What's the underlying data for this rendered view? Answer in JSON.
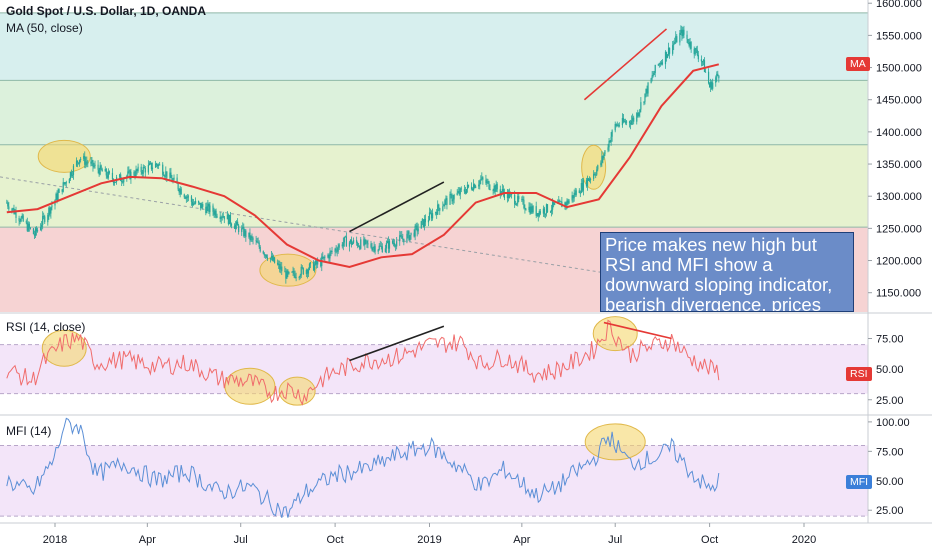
{
  "header": {
    "symbol_title": "Gold Spot / U.S. Dollar, 1D, OANDA",
    "ma_label": "MA (50, close)"
  },
  "panels": {
    "rsi_label": "RSI (14, close)",
    "mfi_label": "MFI (14)",
    "badges": {
      "ma": "MA",
      "rsi": "RSI",
      "mfi": "MFI"
    },
    "annotation": "Price makes new high but RSI and MFI show a downward sloping indicator, bearish divergence, prices"
  },
  "colors": {
    "candle": "#26a69a",
    "ma": "#e53935",
    "rsi": "#f06c6c",
    "mfi": "#5b8fd6",
    "zone_blue": "#d7efee",
    "zone_green": "#dcf1dc",
    "zone_lime": "#e6f2cf",
    "zone_red": "#f6d3d3",
    "band": "#f3e5f9",
    "highlight": "#f5d76e"
  },
  "chart_data": [
    {
      "type": "line",
      "title": "Gold Spot / U.S. Dollar, 1D, OANDA",
      "x_ticks": [
        "2018",
        "Apr",
        "Jul",
        "Oct",
        "2019",
        "Apr",
        "Jul",
        "Oct",
        "2020"
      ],
      "y_ticks": [
        "1150.000",
        "1200.000",
        "1250.000",
        "1300.000",
        "1350.000",
        "1400.000",
        "1450.000",
        "1500.000",
        "1550.000",
        "1600.000"
      ],
      "ylim": [
        1120,
        1605
      ],
      "zones": [
        [
          1480,
          1585
        ],
        [
          1380,
          1480
        ],
        [
          1252,
          1380
        ],
        [
          1120,
          1252
        ]
      ],
      "series": [
        {
          "name": "Gold Spot / U.S. Dollar",
          "x": [
            "2017-11-15",
            "2017-12-12",
            "2018-01-25",
            "2018-03-01",
            "2018-04-11",
            "2018-05-15",
            "2018-06-15",
            "2018-07-17",
            "2018-08-16",
            "2018-09-15",
            "2018-10-10",
            "2018-11-15",
            "2018-12-14",
            "2019-01-15",
            "2019-02-20",
            "2019-03-15",
            "2019-04-15",
            "2019-05-15",
            "2019-06-01",
            "2019-06-15",
            "2019-07-01",
            "2019-07-20",
            "2019-08-10",
            "2019-09-04",
            "2019-09-24",
            "2019-10-01",
            "2019-10-10"
          ],
          "values": [
            1290,
            1240,
            1360,
            1325,
            1350,
            1290,
            1270,
            1225,
            1175,
            1195,
            1230,
            1220,
            1240,
            1290,
            1325,
            1305,
            1275,
            1290,
            1320,
            1345,
            1410,
            1420,
            1500,
            1555,
            1510,
            1470,
            1490
          ]
        },
        {
          "name": "MA (50, close)",
          "x": [
            "2017-11-15",
            "2017-12-15",
            "2018-01-15",
            "2018-02-15",
            "2018-03-15",
            "2018-04-15",
            "2018-05-15",
            "2018-06-15",
            "2018-07-15",
            "2018-08-15",
            "2018-09-15",
            "2018-10-15",
            "2018-11-15",
            "2018-12-15",
            "2019-01-15",
            "2019-02-15",
            "2019-03-15",
            "2019-04-15",
            "2019-05-15",
            "2019-06-15",
            "2019-07-15",
            "2019-08-15",
            "2019-09-15",
            "2019-10-10"
          ],
          "values": [
            1275,
            1280,
            1300,
            1320,
            1330,
            1328,
            1315,
            1300,
            1270,
            1225,
            1200,
            1190,
            1205,
            1210,
            1240,
            1290,
            1305,
            1305,
            1283,
            1295,
            1360,
            1440,
            1495,
            1505
          ]
        }
      ]
    },
    {
      "type": "line",
      "title": "RSI (14, close)",
      "y_ticks": [
        "25.00",
        "50.00",
        "75.00"
      ],
      "ylim": [
        15,
        95
      ],
      "band": [
        30,
        70
      ],
      "series": [
        {
          "name": "RSI (14, close)",
          "x": [
            "2017-11-15",
            "2017-12-10",
            "2017-12-20",
            "2018-01-10",
            "2018-01-25",
            "2018-02-10",
            "2018-03-10",
            "2018-04-10",
            "2018-05-10",
            "2018-06-10",
            "2018-07-10",
            "2018-08-01",
            "2018-08-15",
            "2018-09-01",
            "2018-09-15",
            "2018-10-01",
            "2018-11-01",
            "2018-12-01",
            "2019-01-01",
            "2019-02-01",
            "2019-02-20",
            "2019-03-15",
            "2019-04-15",
            "2019-05-01",
            "2019-05-20",
            "2019-06-10",
            "2019-06-25",
            "2019-07-15",
            "2019-08-10",
            "2019-08-25",
            "2019-09-10",
            "2019-10-01",
            "2019-10-10"
          ],
          "values": [
            50,
            40,
            55,
            72,
            75,
            55,
            58,
            52,
            55,
            42,
            40,
            30,
            34,
            28,
            40,
            48,
            57,
            60,
            70,
            72,
            54,
            60,
            46,
            48,
            55,
            66,
            85,
            62,
            70,
            74,
            60,
            50,
            48
          ]
        }
      ]
    },
    {
      "type": "line",
      "title": "MFI (14)",
      "y_ticks": [
        "25.00",
        "50.00",
        "75.00",
        "100.00"
      ],
      "ylim": [
        15,
        105
      ],
      "band": [
        20,
        80
      ],
      "series": [
        {
          "name": "MFI (14)",
          "x": [
            "2017-11-15",
            "2017-12-10",
            "2018-01-01",
            "2018-01-10",
            "2018-01-25",
            "2018-02-10",
            "2018-03-10",
            "2018-04-10",
            "2018-05-10",
            "2018-06-10",
            "2018-07-10",
            "2018-08-01",
            "2018-08-15",
            "2018-09-01",
            "2018-10-01",
            "2018-11-01",
            "2018-12-01",
            "2019-01-01",
            "2019-02-01",
            "2019-02-20",
            "2019-03-15",
            "2019-04-15",
            "2019-05-01",
            "2019-05-20",
            "2019-06-10",
            "2019-06-25",
            "2019-07-15",
            "2019-08-10",
            "2019-08-25",
            "2019-09-10",
            "2019-10-01",
            "2019-10-10"
          ],
          "values": [
            50,
            40,
            70,
            98,
            96,
            55,
            65,
            50,
            58,
            40,
            45,
            30,
            22,
            40,
            55,
            60,
            72,
            80,
            60,
            45,
            60,
            38,
            42,
            55,
            68,
            88,
            65,
            70,
            78,
            60,
            42,
            50
          ]
        }
      ]
    }
  ]
}
